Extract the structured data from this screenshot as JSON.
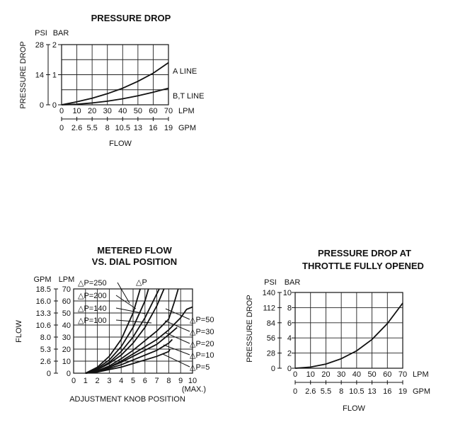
{
  "chart_data": [
    {
      "type": "line",
      "title": "PRESSURE DROP",
      "ylabel": "PRESSURE DROP",
      "xlabel": "FLOW",
      "y_units": [
        "PSI",
        "BAR"
      ],
      "y_ticks_psi": [
        "28",
        "14",
        "0"
      ],
      "y_ticks_bar": [
        "2",
        "1",
        "0"
      ],
      "x_units": [
        "LPM",
        "GPM"
      ],
      "x_ticks_lpm": [
        "0",
        "10",
        "20",
        "30",
        "40",
        "50",
        "60",
        "70"
      ],
      "x_ticks_gpm": [
        "0",
        "2.6",
        "5.5",
        "8",
        "10.5",
        "13",
        "16",
        "19"
      ],
      "xlim": [
        0,
        70
      ],
      "ylim": [
        0,
        2
      ],
      "grid": true,
      "series": [
        {
          "name": "A LINE",
          "x": [
            0,
            10,
            20,
            30,
            40,
            50,
            60,
            70
          ],
          "y": [
            0,
            0.1,
            0.22,
            0.37,
            0.55,
            0.78,
            1.05,
            1.4
          ]
        },
        {
          "name": "B,T LINE",
          "x": [
            0,
            10,
            20,
            30,
            40,
            50,
            60,
            70
          ],
          "y": [
            0,
            0.02,
            0.06,
            0.12,
            0.2,
            0.3,
            0.42,
            0.55
          ]
        }
      ]
    },
    {
      "type": "line",
      "title_lines": [
        "METERED FLOW",
        "VS. DIAL POSITION"
      ],
      "ylabel": "FLOW",
      "xlabel": "ADJUSTMENT KNOB POSITION",
      "y_units": [
        "GPM",
        "LPM"
      ],
      "y_ticks_gpm": [
        "18.5",
        "16.0",
        "13.3",
        "10.6",
        "8.0",
        "5.3",
        "2.6",
        "0"
      ],
      "y_ticks_lpm": [
        "70",
        "60",
        "50",
        "40",
        "30",
        "20",
        "10",
        "0"
      ],
      "x_ticks": [
        "0",
        "1",
        "2",
        "3",
        "4",
        "5",
        "6",
        "7",
        "8",
        "9",
        "10"
      ],
      "x_max_label": "(MAX.)",
      "xlim": [
        0,
        10
      ],
      "ylim": [
        0,
        70
      ],
      "grid": true,
      "dp_header": "△P",
      "series": [
        {
          "name": "△P=250",
          "x": [
            1,
            2,
            3,
            4,
            5,
            5.6
          ],
          "y": [
            0,
            5,
            14,
            28,
            50,
            70
          ]
        },
        {
          "name": "△P=200",
          "x": [
            1,
            2,
            3,
            4,
            5,
            6,
            6.3
          ],
          "y": [
            0,
            4,
            11,
            22,
            38,
            60,
            70
          ]
        },
        {
          "name": "△P=140",
          "x": [
            1,
            2,
            3,
            4,
            5,
            6,
            7,
            7.2
          ],
          "y": [
            0,
            3,
            9,
            18,
            30,
            46,
            66,
            70
          ]
        },
        {
          "name": "△P=100",
          "x": [
            1,
            2,
            3,
            4,
            5,
            6,
            7,
            7.6
          ],
          "y": [
            0,
            3,
            8,
            15,
            25,
            38,
            56,
            70
          ]
        },
        {
          "name": "△P=50",
          "x": [
            1,
            2,
            3,
            4,
            5,
            6,
            7,
            8,
            8.5,
            8.8
          ],
          "y": [
            0,
            2,
            6,
            12,
            19,
            27,
            35,
            45,
            60,
            70
          ]
        },
        {
          "name": "△P=30",
          "x": [
            1,
            2,
            3,
            4,
            5,
            6,
            7,
            8,
            9,
            9.5,
            10
          ],
          "y": [
            0,
            2,
            5,
            10,
            16,
            22,
            28,
            36,
            46,
            53,
            55
          ]
        },
        {
          "name": "△P=20",
          "x": [
            1,
            2,
            3,
            4,
            5,
            6,
            7,
            8,
            8.7
          ],
          "y": [
            0,
            2,
            5,
            9,
            14,
            19,
            24,
            32,
            38
          ]
        },
        {
          "name": "△P=10",
          "x": [
            1,
            2,
            3,
            4,
            5,
            6,
            7,
            8,
            8.3
          ],
          "y": [
            0,
            1,
            4,
            7,
            11,
            15,
            19,
            25,
            28
          ]
        },
        {
          "name": "△P=5",
          "x": [
            1,
            2,
            3,
            4,
            5,
            6,
            7,
            8,
            8.1
          ],
          "y": [
            0,
            1,
            3,
            5,
            8,
            11,
            14,
            18,
            20
          ]
        }
      ]
    },
    {
      "type": "line",
      "title_lines": [
        "PRESSURE DROP AT",
        "THROTTLE FULLY OPENED"
      ],
      "ylabel": "PRESSURE DROP",
      "xlabel": "FLOW",
      "y_units": [
        "PSI",
        "BAR"
      ],
      "y_ticks_psi": [
        "140",
        "112",
        "84",
        "56",
        "28",
        "0"
      ],
      "y_ticks_bar": [
        "10",
        "8",
        "6",
        "4",
        "2",
        "0"
      ],
      "x_units": [
        "LPM",
        "GPM"
      ],
      "x_ticks_lpm": [
        "0",
        "10",
        "20",
        "30",
        "40",
        "50",
        "60",
        "70"
      ],
      "x_ticks_gpm": [
        "0",
        "2.6",
        "5.5",
        "8",
        "10.5",
        "13",
        "16",
        "19"
      ],
      "xlim": [
        0,
        70
      ],
      "ylim": [
        0,
        10
      ],
      "grid": true,
      "series": [
        {
          "name": "",
          "x": [
            0,
            10,
            20,
            30,
            40,
            50,
            60,
            70
          ],
          "y": [
            0,
            0.15,
            0.55,
            1.25,
            2.3,
            3.8,
            5.9,
            8.6
          ]
        }
      ]
    }
  ]
}
